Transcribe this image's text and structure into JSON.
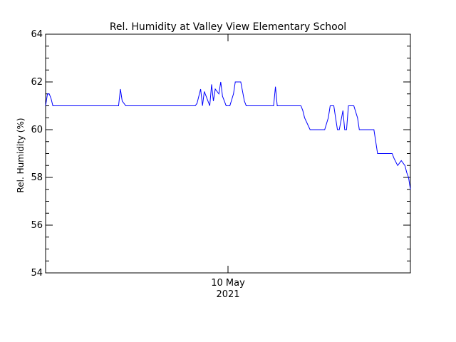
{
  "chart_data": {
    "type": "line",
    "title": "Rel. Humidity at Valley View Elementary School",
    "xlabel": "",
    "ylabel": "Rel. Humidity (%)",
    "ylim": [
      54,
      64
    ],
    "yticks": [
      "54",
      "56",
      "58",
      "60",
      "62",
      "64"
    ],
    "xtick_labels": [
      {
        "x": 10,
        "line1": "10 May",
        "line2": "2021"
      }
    ],
    "xlim": [
      0,
      20
    ],
    "grid": false,
    "line_color": "#0000ff",
    "series": [
      {
        "x": [
          0.0,
          0.1,
          0.2,
          0.3,
          0.4,
          0.5,
          1.0,
          2.0,
          3.0,
          3.8,
          4.0,
          4.1,
          4.2,
          4.4,
          5.0,
          6.0,
          7.0,
          7.5,
          7.9,
          8.1,
          8.2,
          8.3,
          8.5,
          8.6,
          8.7,
          8.8,
          9.0,
          9.1,
          9.2,
          9.3,
          9.5,
          9.6,
          9.7,
          9.8,
          9.9,
          10.0,
          10.1,
          10.3,
          10.4,
          10.5,
          10.7,
          10.9,
          11.0,
          11.1,
          11.2,
          11.3,
          11.4,
          11.5,
          11.6,
          11.7,
          11.8,
          12.0,
          12.2,
          12.3,
          12.4,
          12.5,
          12.6,
          12.7,
          12.9,
          13.0,
          13.1,
          13.2,
          13.3,
          13.4,
          13.5,
          13.6,
          13.8,
          13.9,
          14.0,
          14.1,
          14.2,
          14.5,
          14.6,
          14.7,
          14.8,
          14.9,
          15.0,
          15.1,
          15.2,
          15.3,
          15.5,
          15.6,
          15.7,
          15.8,
          15.9,
          16.0,
          16.1,
          16.3,
          16.4,
          16.5,
          16.6,
          16.7,
          16.8,
          16.9,
          17.1,
          17.2,
          17.3,
          17.4,
          17.6,
          17.7,
          17.8,
          17.9,
          18.0,
          18.2,
          18.3,
          18.4,
          18.5,
          18.6,
          18.7,
          18.8,
          18.9,
          19.0,
          19.1,
          19.3,
          19.5,
          19.7,
          19.8,
          19.9,
          20.0
        ],
        "y": [
          61.0,
          61.5,
          61.5,
          61.3,
          61.0,
          61.0,
          61.0,
          61.0,
          61.0,
          61.0,
          61.0,
          61.7,
          61.2,
          61.0,
          61.0,
          61.0,
          61.0,
          61.0,
          61.0,
          61.0,
          61.0,
          61.1,
          61.7,
          61.0,
          61.6,
          61.4,
          61.0,
          61.9,
          61.2,
          61.7,
          61.5,
          62.0,
          61.4,
          61.2,
          61.0,
          61.0,
          61.0,
          61.5,
          62.0,
          62.0,
          62.0,
          61.2,
          61.0,
          61.0,
          61.0,
          61.0,
          61.0,
          61.0,
          61.0,
          61.0,
          61.0,
          61.0,
          61.0,
          61.0,
          61.0,
          61.0,
          61.8,
          61.0,
          61.0,
          61.0,
          61.0,
          61.0,
          61.0,
          61.0,
          61.0,
          61.0,
          61.0,
          61.0,
          61.0,
          60.8,
          60.5,
          60.0,
          60.0,
          60.0,
          60.0,
          60.0,
          60.0,
          60.0,
          60.0,
          60.0,
          60.5,
          61.0,
          61.0,
          61.0,
          60.5,
          60.0,
          60.0,
          60.8,
          60.0,
          60.0,
          61.0,
          61.0,
          61.0,
          61.0,
          60.5,
          60.0,
          60.0,
          60.0,
          60.0,
          60.0,
          60.0,
          60.0,
          60.0,
          59.0,
          59.0,
          59.0,
          59.0,
          59.0,
          59.0,
          59.0,
          59.0,
          59.0,
          58.8,
          58.5,
          58.7,
          58.5,
          58.2,
          58.0,
          57.5
        ]
      }
    ]
  }
}
